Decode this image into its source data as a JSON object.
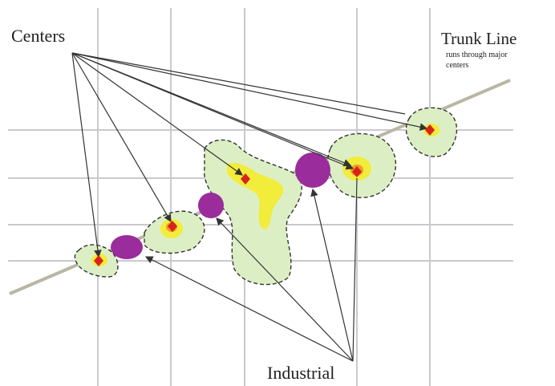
{
  "labels": {
    "centers": "Centers",
    "trunk_line": "Trunk Line",
    "trunk_note": "runs through major centers",
    "industrial": "Industrial"
  }
}
